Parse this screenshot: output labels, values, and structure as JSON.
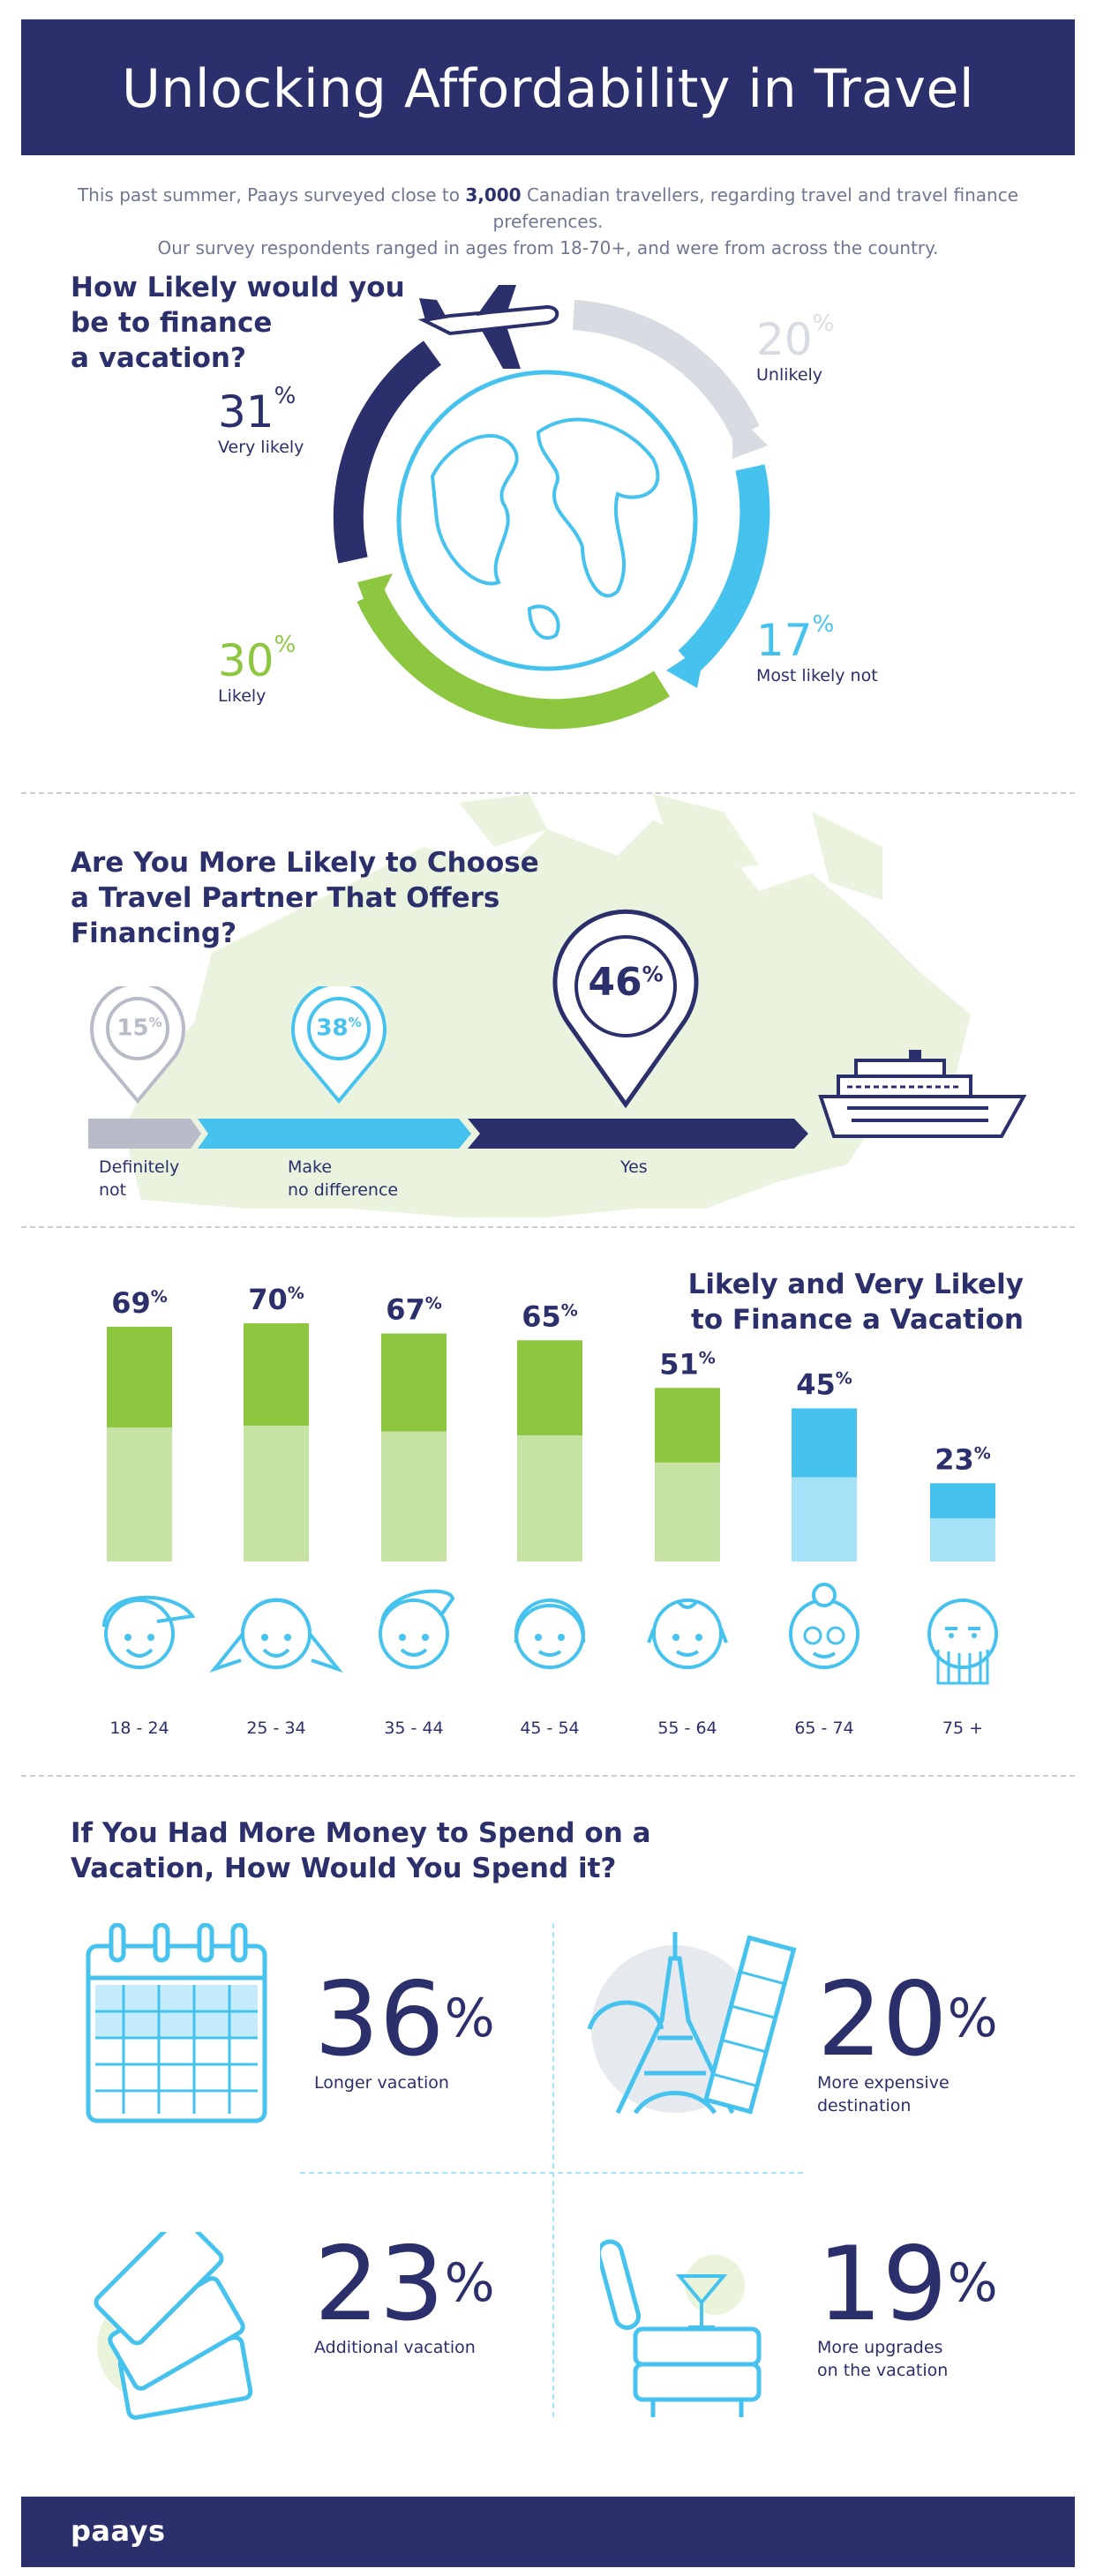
{
  "header": {
    "title": "Unlocking Affordability in Travel"
  },
  "intro": {
    "line1_a": "This past summer, Paays surveyed close to ",
    "line1_num": "3,000",
    "line1_b": " Canadian travellers, regarding travel and travel finance preferences.",
    "line2": "Our survey respondents ranged in ages from 18-70+, and were from across the country."
  },
  "colors": {
    "navy": "#2b2f6b",
    "sky": "#45c3ee",
    "green": "#8dc63f",
    "lightgreen": "#c6e3a3",
    "gray": "#d7dbe2",
    "lightsky": "#a6e2f7"
  },
  "finance": {
    "title_l1": "How Likely would you",
    "title_l2": "be to finance",
    "title_l3": "a vacation?",
    "items": [
      {
        "pct": "31",
        "label": "Very likely"
      },
      {
        "pct": "20",
        "label": "Unlikely"
      },
      {
        "pct": "17",
        "label": "Most likely not"
      },
      {
        "pct": "30",
        "label": "Likely"
      }
    ]
  },
  "partner": {
    "title_l1": "Are You More Likely to Choose",
    "title_l2": "a Travel Partner That Offers",
    "title_l3": "Financing?",
    "items": [
      {
        "pct": "15",
        "label_l1": "Definitely",
        "label_l2": "not"
      },
      {
        "pct": "38",
        "label_l1": "Make",
        "label_l2": "no difference"
      },
      {
        "pct": "46",
        "label_l1": "Yes",
        "label_l2": ""
      }
    ]
  },
  "age_chart": {
    "title_l1": "Likely and Very Likely",
    "title_l2": "to Finance a Vacation"
  },
  "chart_data": {
    "type": "bar",
    "title": "Likely and Very Likely to Finance a Vacation",
    "xlabel": "",
    "ylabel": "",
    "ylim": [
      0,
      70
    ],
    "categories": [
      "18 - 24",
      "25 - 34",
      "35 - 44",
      "45 - 54",
      "55 - 64",
      "65 - 74",
      "75 +"
    ],
    "values": [
      69,
      70,
      67,
      65,
      51,
      45,
      23
    ],
    "labels": [
      "69",
      "70",
      "67",
      "65",
      "51",
      "45",
      "23"
    ]
  },
  "spend": {
    "title_l1": "If You Had More Money to Spend on a",
    "title_l2": "Vacation, How Would You Spend it?",
    "items": [
      {
        "pct": "36",
        "label_l1": "Longer vacation",
        "label_l2": ""
      },
      {
        "pct": "20",
        "label_l1": "More expensive",
        "label_l2": "destination"
      },
      {
        "pct": "23",
        "label_l1": "Additional vacation",
        "label_l2": ""
      },
      {
        "pct": "19",
        "label_l1": "More upgrades",
        "label_l2": "on the vacation"
      }
    ]
  },
  "footer": {
    "logo": "paays"
  }
}
